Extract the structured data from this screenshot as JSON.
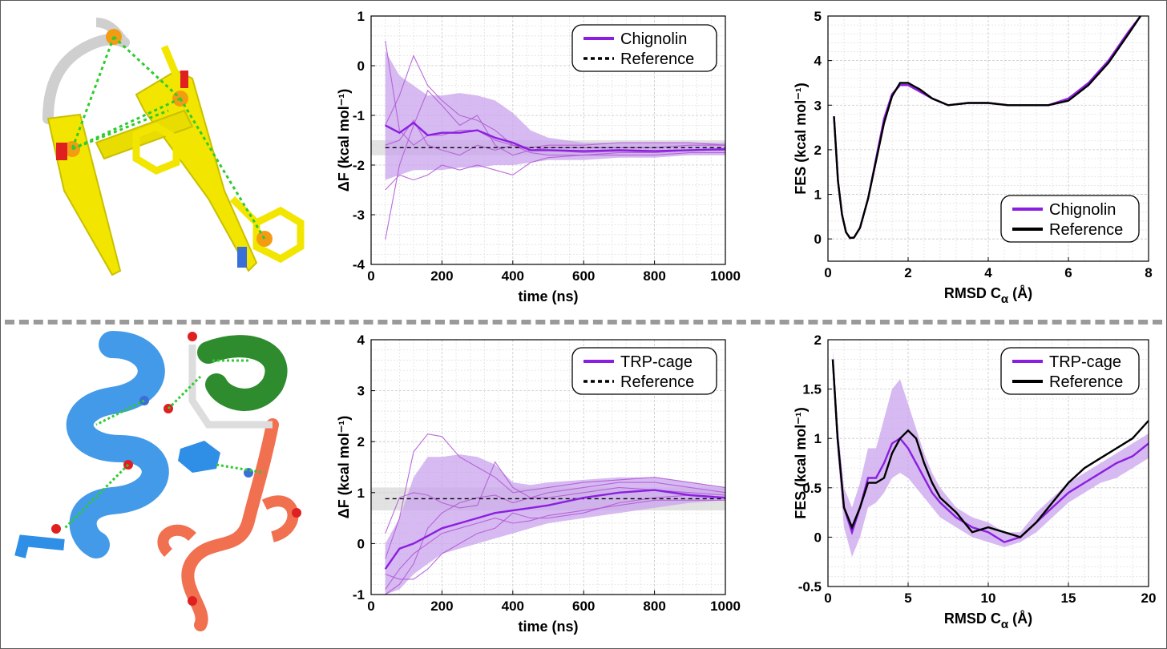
{
  "colors": {
    "protein_purple": "#8b1fe0",
    "band_purple": "#c9a3ec",
    "reference": "#000000",
    "chignolin_cartoon": "#f2e600",
    "trpcage_helix": "#2f8fe6",
    "trpcage_310": "#2e8b2e",
    "trpcage_polypro": "#f07050",
    "hbond": "#2ecc2e",
    "divider": "#9a9a9a"
  },
  "molecules": [
    {
      "name": "chignolin",
      "icon": "chignolin-structure-icon"
    },
    {
      "name": "trp-cage",
      "icon": "trpcage-structure-icon"
    }
  ],
  "chart_data": [
    {
      "type": "line",
      "id": "chignolin-dF",
      "xlabel": "time (ns)",
      "ylabel": "ΔF (kcal mol⁻¹)",
      "xlim": [
        0,
        1000
      ],
      "ylim": [
        -4,
        1
      ],
      "xticks": [
        0,
        200,
        400,
        600,
        800,
        1000
      ],
      "yticks": [
        -4,
        -3,
        -2,
        -1,
        0,
        1
      ],
      "grid": true,
      "legend": {
        "placement": "top-right",
        "entries": [
          "Chignolin",
          "Reference"
        ]
      },
      "reference_value": -1.65,
      "reference_band": [
        -1.8,
        -1.5
      ],
      "x": [
        40,
        80,
        120,
        160,
        200,
        250,
        300,
        350,
        400,
        450,
        500,
        600,
        700,
        800,
        900,
        1000
      ],
      "series": [
        {
          "name": "Chignolin",
          "values": [
            -1.2,
            -1.35,
            -1.15,
            -1.4,
            -1.35,
            -1.35,
            -1.3,
            -1.45,
            -1.55,
            -1.7,
            -1.7,
            -1.72,
            -1.7,
            -1.72,
            -1.7,
            -1.68
          ]
        }
      ],
      "band": {
        "lower": [
          -2.3,
          -2.2,
          -2.1,
          -2.1,
          -2.1,
          -2.05,
          -2.05,
          -2.0,
          -2.0,
          -1.95,
          -1.9,
          -1.9,
          -1.85,
          -1.85,
          -1.8,
          -1.8
        ],
        "upper": [
          0.3,
          -0.2,
          -0.4,
          -0.6,
          -0.6,
          -0.55,
          -0.6,
          -0.7,
          -0.95,
          -1.3,
          -1.45,
          -1.55,
          -1.55,
          -1.55,
          -1.55,
          -1.55
        ]
      },
      "runs": [
        [
          0.5,
          -1.3,
          -1.6,
          -1.4,
          -1.4,
          -1.3,
          -1.3,
          -1.5,
          -1.6,
          -1.65,
          -1.6,
          -1.6,
          -1.55,
          -1.55,
          -1.55,
          -1.6
        ],
        [
          -3.5,
          -2.0,
          -1.2,
          -0.5,
          -0.8,
          -1.2,
          -1.0,
          -1.6,
          -1.8,
          -1.7,
          -1.65,
          -1.65,
          -1.65,
          -1.65,
          -1.6,
          -1.6
        ],
        [
          -1.2,
          -0.6,
          0.2,
          -0.4,
          -0.7,
          -1.0,
          -1.1,
          -1.3,
          -1.6,
          -1.75,
          -1.8,
          -1.8,
          -1.75,
          -1.75,
          -1.7,
          -1.7
        ],
        [
          -2.5,
          -2.2,
          -2.3,
          -2.2,
          -2.0,
          -2.1,
          -2.0,
          -2.1,
          -2.2,
          -1.95,
          -1.85,
          -1.8,
          -1.8,
          -1.8,
          -1.75,
          -1.75
        ],
        [
          -1.6,
          -1.5,
          -1.1,
          -1.6,
          -1.7,
          -1.8,
          -1.6,
          -1.7,
          -1.6,
          -1.7,
          -1.7,
          -1.75,
          -1.72,
          -1.75,
          -1.7,
          -1.7
        ]
      ]
    },
    {
      "type": "line",
      "id": "chignolin-FES",
      "xlabel": "RMSD C",
      "xlabel_sub": "α",
      "xlabel_suffix": " (Å)",
      "ylabel": "FES (kcal mol⁻¹)",
      "xlim": [
        0,
        8
      ],
      "ylim": [
        -0.5,
        5
      ],
      "xticks": [
        0,
        2,
        4,
        6,
        8
      ],
      "yticks": [
        0,
        1,
        2,
        3,
        4,
        5
      ],
      "grid": true,
      "legend": {
        "placement": "bottom-right",
        "entries": [
          "Chignolin",
          "Reference"
        ]
      },
      "x": [
        0.15,
        0.25,
        0.35,
        0.45,
        0.55,
        0.65,
        0.8,
        1.0,
        1.2,
        1.4,
        1.6,
        1.8,
        2.0,
        2.3,
        2.6,
        3.0,
        3.5,
        4.0,
        4.5,
        5.0,
        5.5,
        6.0,
        6.5,
        7.0,
        7.5,
        7.8
      ],
      "series": [
        {
          "name": "Chignolin",
          "values": [
            2.75,
            1.3,
            0.55,
            0.15,
            0.02,
            0.03,
            0.25,
            0.9,
            1.8,
            2.7,
            3.25,
            3.45,
            3.45,
            3.3,
            3.15,
            3.0,
            3.05,
            3.05,
            3.0,
            3.0,
            3.0,
            3.15,
            3.5,
            4.0,
            4.65,
            5.0
          ]
        },
        {
          "name": "Reference",
          "values": [
            2.75,
            1.3,
            0.55,
            0.15,
            0.02,
            0.03,
            0.25,
            0.9,
            1.75,
            2.6,
            3.2,
            3.5,
            3.5,
            3.35,
            3.15,
            3.0,
            3.05,
            3.05,
            3.0,
            3.0,
            3.0,
            3.1,
            3.45,
            3.95,
            4.6,
            5.0
          ]
        }
      ]
    },
    {
      "type": "line",
      "id": "trpcage-dF",
      "xlabel": "time (ns)",
      "ylabel": "ΔF (kcal mol⁻¹)",
      "xlim": [
        0,
        1000
      ],
      "ylim": [
        -1,
        4
      ],
      "xticks": [
        0,
        200,
        400,
        600,
        800,
        1000
      ],
      "yticks": [
        -1,
        0,
        1,
        2,
        3,
        4
      ],
      "grid": true,
      "legend": {
        "placement": "top-right",
        "entries": [
          "TRP-cage",
          "Reference"
        ]
      },
      "reference_value": 0.88,
      "reference_band": [
        0.65,
        1.1
      ],
      "x": [
        40,
        80,
        120,
        160,
        200,
        250,
        300,
        350,
        400,
        450,
        500,
        600,
        700,
        800,
        900,
        1000
      ],
      "series": [
        {
          "name": "TRP-cage",
          "values": [
            -0.5,
            -0.1,
            0.0,
            0.15,
            0.3,
            0.4,
            0.5,
            0.6,
            0.65,
            0.7,
            0.75,
            0.9,
            1.0,
            1.05,
            0.95,
            0.9
          ]
        },
        {
          "name": "Reference",
          "values": [
            0.88,
            0.88,
            0.88,
            0.88,
            0.88,
            0.88,
            0.88,
            0.88,
            0.88,
            0.88,
            0.88,
            0.88,
            0.88,
            0.88,
            0.88,
            0.88
          ]
        }
      ],
      "band": {
        "lower": [
          -1.0,
          -0.9,
          -0.6,
          -0.4,
          -0.2,
          -0.1,
          0.0,
          0.1,
          0.2,
          0.3,
          0.4,
          0.5,
          0.6,
          0.7,
          0.8,
          0.85
        ],
        "upper": [
          0.0,
          0.5,
          1.3,
          1.7,
          1.7,
          1.75,
          1.7,
          1.55,
          1.2,
          1.15,
          1.2,
          1.25,
          1.3,
          1.3,
          1.2,
          1.1
        ]
      },
      "runs": [
        [
          -0.3,
          0.5,
          1.8,
          2.15,
          2.1,
          1.7,
          1.5,
          1.3,
          1.0,
          1.05,
          1.1,
          1.2,
          1.25,
          1.3,
          1.2,
          1.1
        ],
        [
          -1.0,
          -0.8,
          -0.4,
          0.3,
          0.6,
          0.8,
          0.9,
          0.95,
          0.8,
          0.9,
          1.0,
          1.1,
          1.2,
          1.2,
          1.1,
          1.0
        ],
        [
          -0.6,
          -0.7,
          -0.7,
          -0.5,
          -0.2,
          0.0,
          0.2,
          0.3,
          0.6,
          0.5,
          0.5,
          0.6,
          0.8,
          0.9,
          0.95,
          0.9
        ],
        [
          0.2,
          0.9,
          1.0,
          0.95,
          0.8,
          0.7,
          0.75,
          1.6,
          1.1,
          0.9,
          0.9,
          1.0,
          1.1,
          1.05,
          1.0,
          0.95
        ],
        [
          -0.9,
          -0.5,
          -0.2,
          0.0,
          0.2,
          0.3,
          0.4,
          0.5,
          0.4,
          0.45,
          0.55,
          0.65,
          0.75,
          0.85,
          0.85,
          0.85
        ]
      ]
    },
    {
      "type": "line",
      "id": "trpcage-FES",
      "xlabel": "RMSD C",
      "xlabel_sub": "α",
      "xlabel_suffix": " (Å)",
      "ylabel": "FES (kcal mol⁻¹)",
      "xlim": [
        0,
        20
      ],
      "ylim": [
        -0.5,
        2
      ],
      "xticks": [
        0,
        5,
        10,
        15,
        20
      ],
      "yticks": [
        -0.5,
        0,
        0.5,
        1,
        1.5,
        2
      ],
      "grid": true,
      "legend": {
        "placement": "top-right",
        "entries": [
          "TRP-cage",
          "Reference"
        ]
      },
      "x": [
        0.3,
        0.6,
        1.0,
        1.5,
        2.0,
        2.5,
        3.0,
        3.5,
        4.0,
        4.5,
        5.0,
        5.5,
        6.0,
        6.5,
        7.0,
        8.0,
        9.0,
        10.0,
        11.0,
        12.0,
        13.0,
        14.0,
        15.0,
        16.0,
        17.0,
        18.0,
        19.0,
        20.0
      ],
      "series": [
        {
          "name": "TRP-cage",
          "values": [
            1.8,
            1.0,
            0.3,
            0.05,
            0.3,
            0.6,
            0.6,
            0.75,
            0.95,
            1.0,
            0.9,
            0.75,
            0.6,
            0.45,
            0.35,
            0.2,
            0.1,
            0.05,
            -0.05,
            0.0,
            0.15,
            0.3,
            0.45,
            0.55,
            0.65,
            0.75,
            0.82,
            0.95
          ]
        },
        {
          "name": "Reference",
          "values": [
            1.8,
            1.0,
            0.3,
            0.1,
            0.3,
            0.55,
            0.55,
            0.6,
            0.85,
            1.0,
            1.08,
            1.0,
            0.75,
            0.55,
            0.4,
            0.25,
            0.05,
            0.1,
            0.05,
            0.0,
            0.15,
            0.35,
            0.55,
            0.7,
            0.8,
            0.9,
            1.0,
            1.18
          ]
        }
      ],
      "band": {
        "lower": [
          1.7,
          0.85,
          0.1,
          -0.2,
          0.0,
          0.3,
          0.35,
          0.45,
          0.6,
          0.65,
          0.6,
          0.5,
          0.4,
          0.3,
          0.2,
          0.1,
          0.0,
          -0.05,
          -0.1,
          -0.05,
          0.05,
          0.2,
          0.35,
          0.45,
          0.55,
          0.6,
          0.7,
          0.8
        ],
        "upper": [
          1.9,
          1.15,
          0.5,
          0.3,
          0.55,
          0.9,
          0.9,
          1.2,
          1.5,
          1.6,
          1.35,
          1.1,
          0.85,
          0.65,
          0.5,
          0.3,
          0.2,
          0.15,
          0.05,
          0.05,
          0.25,
          0.4,
          0.55,
          0.65,
          0.75,
          0.85,
          0.95,
          1.05
        ]
      }
    }
  ]
}
